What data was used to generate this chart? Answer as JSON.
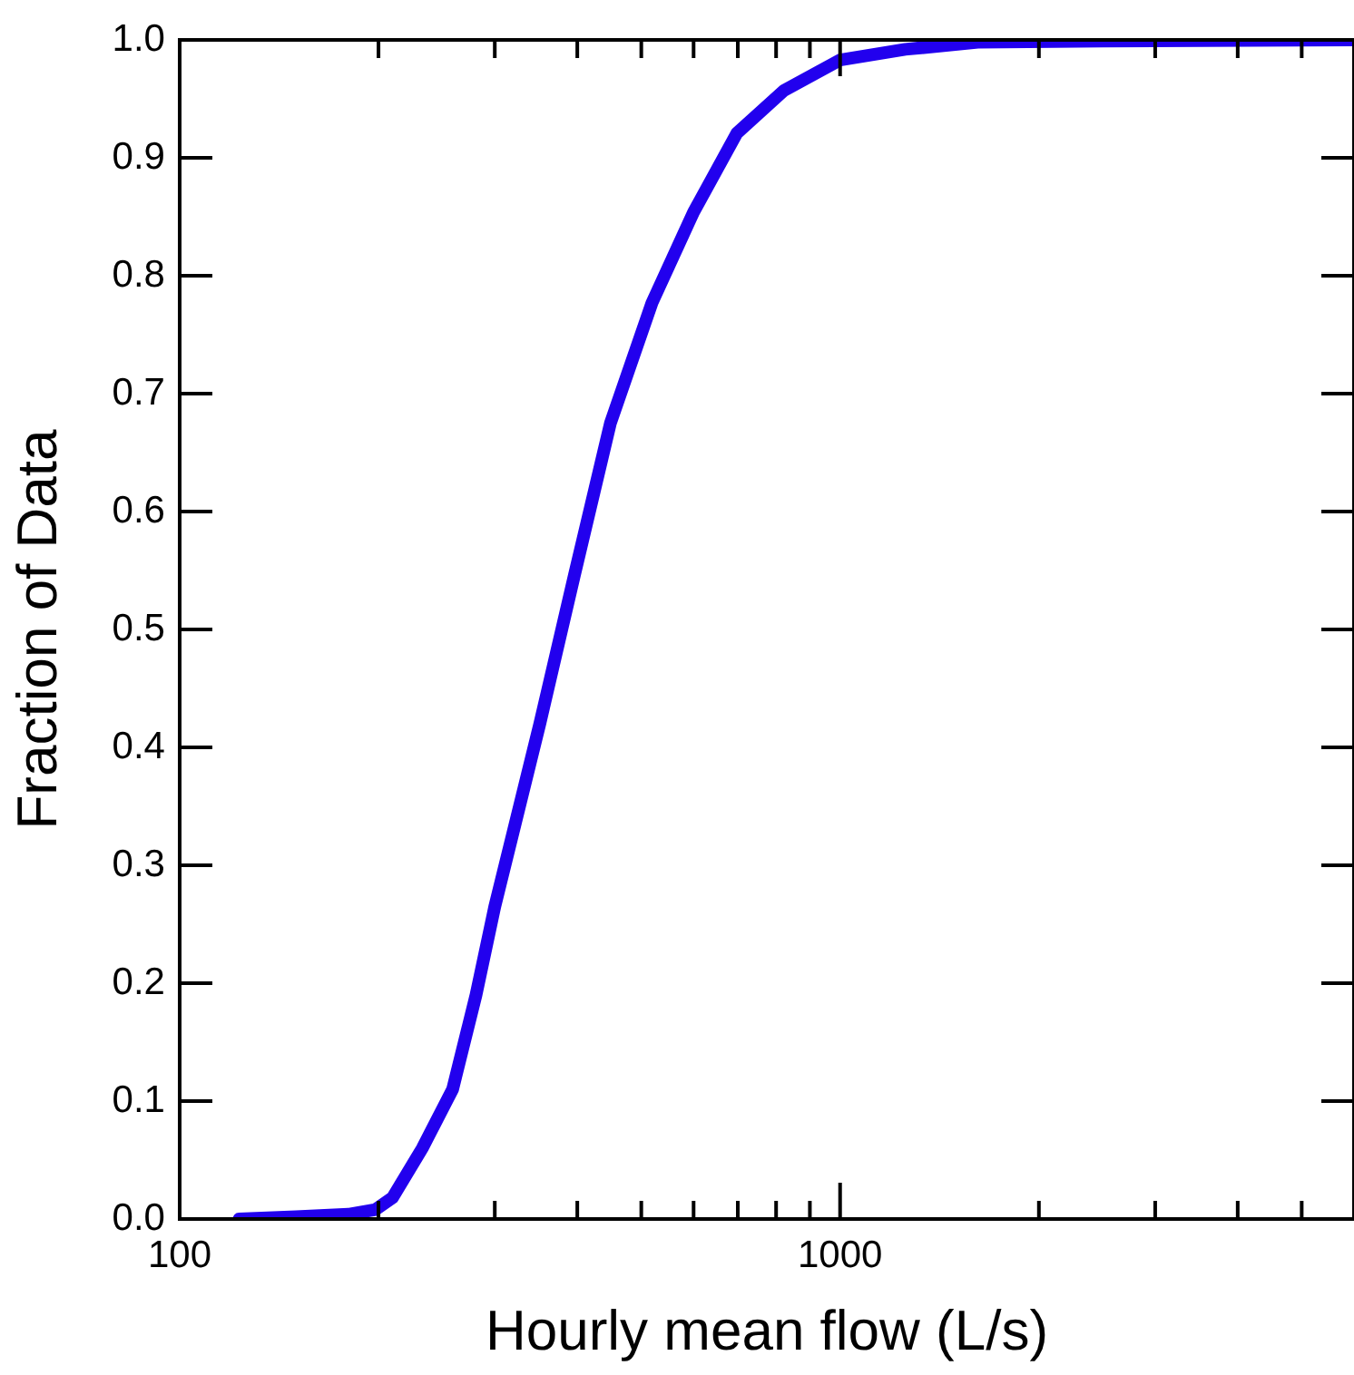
{
  "chart_data": {
    "type": "line",
    "xlabel": "Hourly mean flow (L/s)",
    "ylabel": "Fraction of Data",
    "log": "x",
    "grid": false,
    "legend": false,
    "marker": "none",
    "line_style": "solid",
    "xlim": [
      100,
      6000
    ],
    "ylim": [
      0,
      1
    ],
    "xticks": [
      100,
      {
        "value": 200,
        "label": null
      },
      {
        "value": 300,
        "label": null
      },
      {
        "value": 400,
        "label": null
      },
      {
        "value": 500,
        "label": null
      },
      {
        "value": 600,
        "label": null
      },
      {
        "value": 700,
        "label": null
      },
      {
        "value": 800,
        "label": null
      },
      {
        "value": 900,
        "label": null
      },
      1000,
      {
        "value": 2000,
        "label": null
      },
      {
        "value": 3000,
        "label": null
      },
      {
        "value": 4000,
        "label": null
      },
      {
        "value": 5000,
        "label": null
      }
    ],
    "yticks": [
      {
        "value": 0,
        "label": "0.0"
      },
      {
        "value": 0.1,
        "label": "0.1"
      },
      {
        "value": 0.2,
        "label": "0.2"
      },
      {
        "value": 0.3,
        "label": "0.3"
      },
      {
        "value": 0.4,
        "label": "0.4"
      },
      {
        "value": 0.5,
        "label": "0.5"
      },
      {
        "value": 0.6,
        "label": "0.6"
      },
      {
        "value": 0.7,
        "label": "0.7"
      },
      {
        "value": 0.8,
        "label": "0.8"
      },
      {
        "value": 0.9,
        "label": "0.9"
      },
      {
        "value": 1,
        "label": "1.0"
      }
    ],
    "series": [
      {
        "color": "#2200ee",
        "x": [
          123,
          150,
          180,
          198,
          210,
          233,
          259,
          281,
          300,
          327,
          351,
          396,
          449,
          519,
          600,
          698,
          822,
          1000,
          1255,
          1616,
          2500,
          6000
        ],
        "values": [
          0,
          0.002,
          0.004,
          0.008,
          0.018,
          0.06,
          0.11,
          0.19,
          0.265,
          0.35,
          0.42,
          0.546,
          0.675,
          0.777,
          0.854,
          0.921,
          0.957,
          0.983,
          0.992,
          0.998,
          0.999,
          1
        ]
      }
    ]
  }
}
